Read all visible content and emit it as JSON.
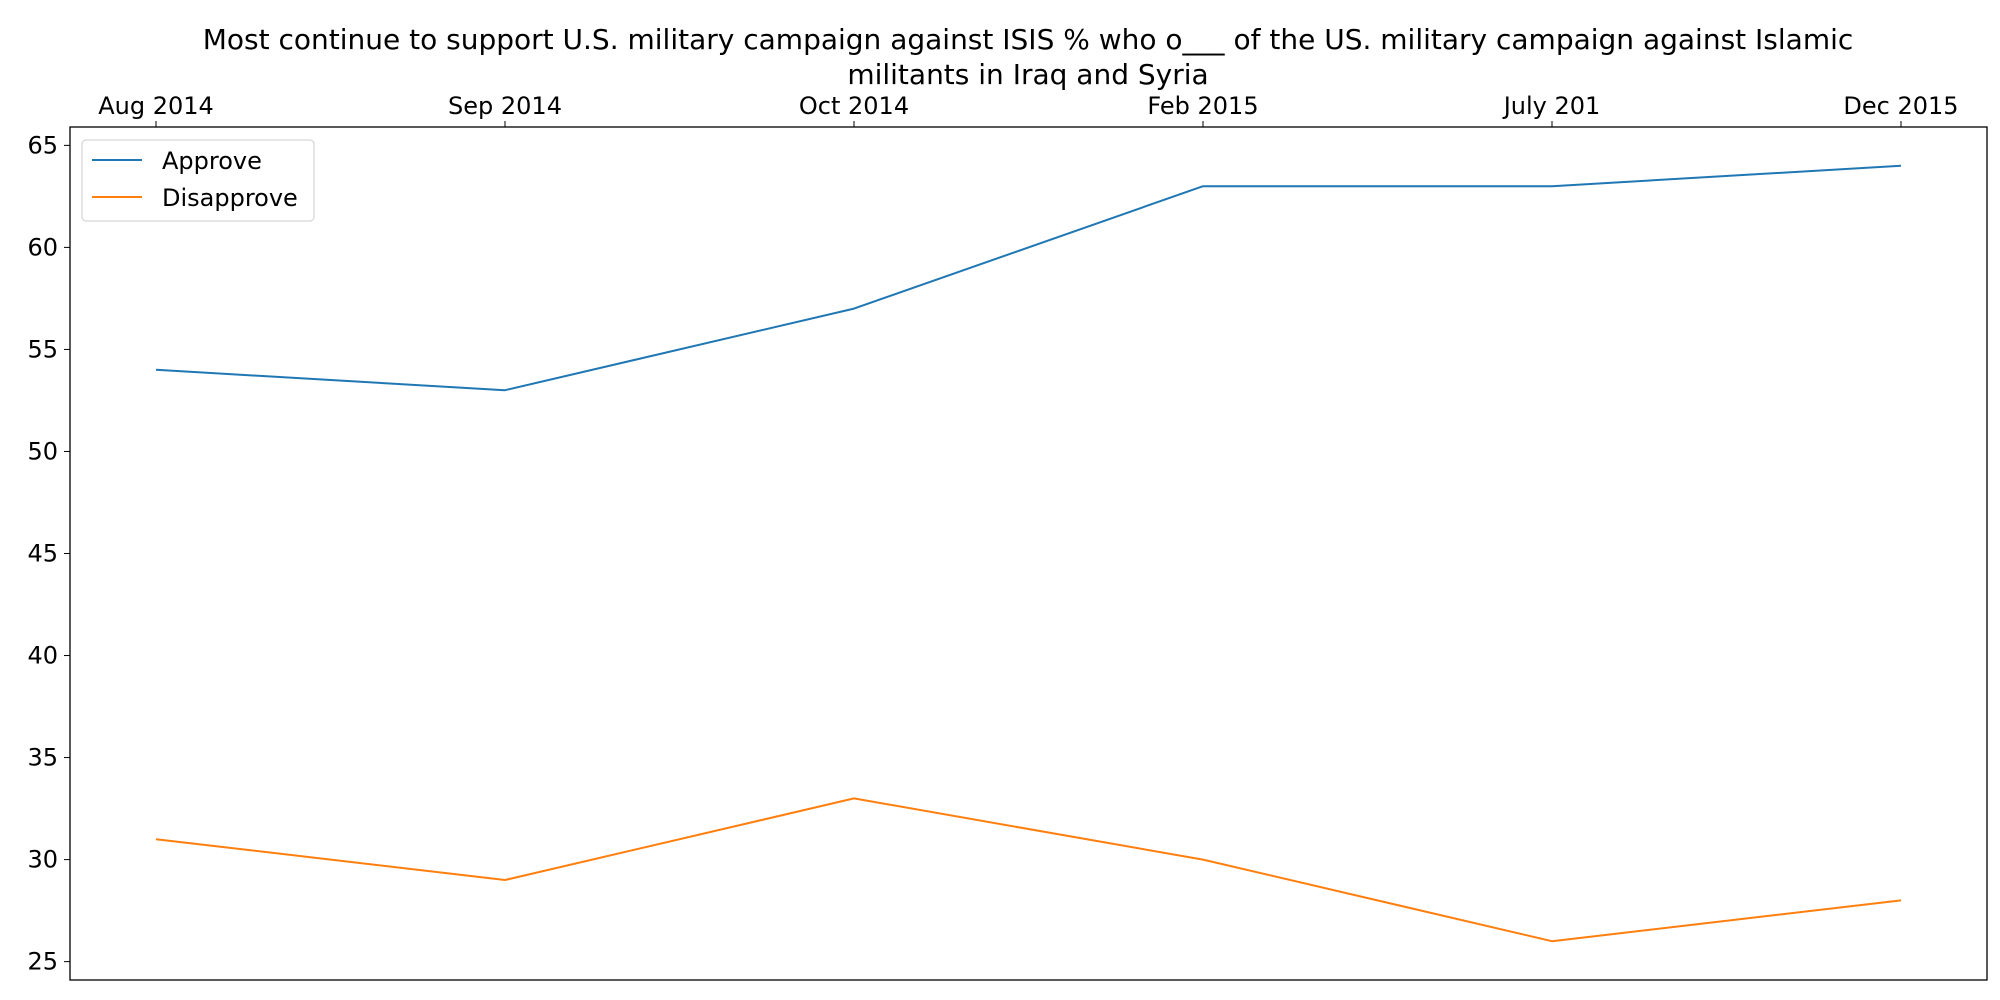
{
  "chart_data": {
    "type": "line",
    "title": "Most continue to support U.S. military campaign against ISIS % who o___ of the US. military campaign against Islamic militants in Iraq and Syria",
    "title_lines": [
      "Most continue to support U.S. military campaign against ISIS % who o___ of the US. military campaign against Islamic",
      "militants in Iraq and Syria"
    ],
    "categories": [
      "Aug 2014",
      "Sep 2014",
      "Oct 2014",
      "Feb 2015",
      "July 201",
      "Dec 2015"
    ],
    "series": [
      {
        "name": "Approve",
        "values": [
          54,
          53,
          57,
          63,
          63,
          64
        ],
        "color": "#1f77b4"
      },
      {
        "name": "Disapprove",
        "values": [
          31,
          29,
          33,
          30,
          26,
          28
        ],
        "color": "#ff7f0e"
      }
    ],
    "xaxis_position": "top",
    "yticks": [
      25,
      30,
      35,
      40,
      45,
      50,
      55,
      60,
      65
    ],
    "ylim": [
      24.1,
      65.9
    ],
    "grid": false,
    "legend_position": "top-left"
  }
}
